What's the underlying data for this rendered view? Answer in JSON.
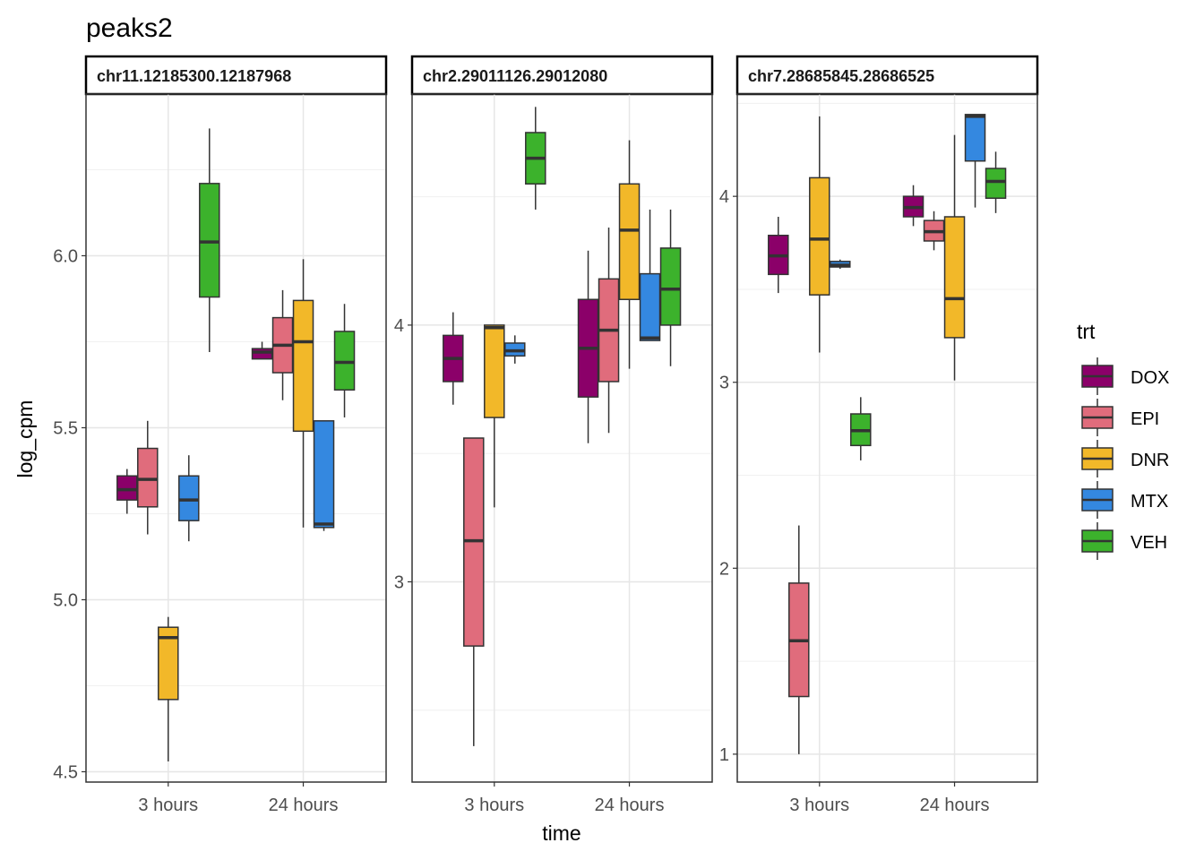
{
  "title": "peaks2",
  "chart_data": {
    "type": "boxplot",
    "xlabel": "time",
    "ylabel": "log_cpm",
    "categories": [
      "3 hours",
      "24 hours"
    ],
    "groups": [
      "DOX",
      "EPI",
      "DNR",
      "MTX",
      "VEH"
    ],
    "legend": {
      "title": "trt",
      "position": "right",
      "entries": [
        {
          "name": "DOX",
          "color": "#8B0069"
        },
        {
          "name": "EPI",
          "color": "#E06C7C"
        },
        {
          "name": "DNR",
          "color": "#F2B829"
        },
        {
          "name": "MTX",
          "color": "#3488E0"
        },
        {
          "name": "VEH",
          "color": "#3CB22C"
        }
      ]
    },
    "grid": true,
    "facets": [
      {
        "strip": "chr11.12185300.12187968",
        "ylim": [
          4.47,
          6.47
        ],
        "major_ticks": [
          4.5,
          5.0,
          5.5,
          6.0
        ],
        "tick_labels": [
          "4.5",
          "5.0",
          "5.5",
          "6.0"
        ],
        "boxes": {
          "3 hours": [
            {
              "trt": "DOX",
              "min": 5.25,
              "q1": 5.29,
              "median": 5.32,
              "q3": 5.36,
              "max": 5.38
            },
            {
              "trt": "EPI",
              "min": 5.19,
              "q1": 5.27,
              "median": 5.35,
              "q3": 5.44,
              "max": 5.52
            },
            {
              "trt": "DNR",
              "min": 4.53,
              "q1": 4.71,
              "median": 4.89,
              "q3": 4.92,
              "max": 4.95
            },
            {
              "trt": "MTX",
              "min": 5.17,
              "q1": 5.23,
              "median": 5.29,
              "q3": 5.36,
              "max": 5.42
            },
            {
              "trt": "VEH",
              "min": 5.72,
              "q1": 5.88,
              "median": 6.04,
              "q3": 6.21,
              "max": 6.37
            }
          ],
          "24 hours": [
            {
              "trt": "DOX",
              "min": 5.7,
              "q1": 5.7,
              "median": 5.72,
              "q3": 5.73,
              "max": 5.75
            },
            {
              "trt": "EPI",
              "min": 5.58,
              "q1": 5.66,
              "median": 5.74,
              "q3": 5.82,
              "max": 5.9
            },
            {
              "trt": "DNR",
              "min": 5.21,
              "q1": 5.49,
              "median": 5.75,
              "q3": 5.87,
              "max": 5.99
            },
            {
              "trt": "MTX",
              "min": 5.2,
              "q1": 5.21,
              "median": 5.22,
              "q3": 5.52,
              "max": 5.52
            },
            {
              "trt": "VEH",
              "min": 5.53,
              "q1": 5.61,
              "median": 5.69,
              "q3": 5.78,
              "max": 5.86
            }
          ]
        }
      },
      {
        "strip": "chr2.29011126.29012080",
        "ylim": [
          2.22,
          4.9
        ],
        "major_ticks": [
          3,
          4
        ],
        "tick_labels": [
          "3",
          "4"
        ],
        "boxes": {
          "3 hours": [
            {
              "trt": "DOX",
              "min": 3.69,
              "q1": 3.78,
              "median": 3.87,
              "q3": 3.96,
              "max": 4.05
            },
            {
              "trt": "EPI",
              "min": 2.36,
              "q1": 2.75,
              "median": 3.16,
              "q3": 3.56,
              "max": 3.56
            },
            {
              "trt": "DNR",
              "min": 3.29,
              "q1": 3.64,
              "median": 3.99,
              "q3": 4.0,
              "max": 4.0
            },
            {
              "trt": "MTX",
              "min": 3.85,
              "q1": 3.88,
              "median": 3.9,
              "q3": 3.93,
              "max": 3.96
            },
            {
              "trt": "VEH",
              "min": 4.45,
              "q1": 4.55,
              "median": 4.65,
              "q3": 4.75,
              "max": 4.85
            }
          ],
          "24 hours": [
            {
              "trt": "DOX",
              "min": 3.54,
              "q1": 3.72,
              "median": 3.91,
              "q3": 4.1,
              "max": 4.29
            },
            {
              "trt": "EPI",
              "min": 3.58,
              "q1": 3.78,
              "median": 3.98,
              "q3": 4.18,
              "max": 4.38
            },
            {
              "trt": "DNR",
              "min": 3.83,
              "q1": 4.1,
              "median": 4.37,
              "q3": 4.55,
              "max": 4.72
            },
            {
              "trt": "MTX",
              "min": 3.94,
              "q1": 3.94,
              "median": 3.95,
              "q3": 4.2,
              "max": 4.45
            },
            {
              "trt": "VEH",
              "min": 3.84,
              "q1": 4.0,
              "median": 4.14,
              "q3": 4.3,
              "max": 4.45
            }
          ]
        }
      },
      {
        "strip": "chr7.28685845.28686525",
        "ylim": [
          0.85,
          4.55
        ],
        "major_ticks": [
          1,
          2,
          3,
          4
        ],
        "tick_labels": [
          "1",
          "2",
          "3",
          "4"
        ],
        "boxes": {
          "3 hours": [
            {
              "trt": "DOX",
              "min": 3.48,
              "q1": 3.58,
              "median": 3.68,
              "q3": 3.79,
              "max": 3.89
            },
            {
              "trt": "EPI",
              "min": 1.0,
              "q1": 1.31,
              "median": 1.61,
              "q3": 1.92,
              "max": 2.23
            },
            {
              "trt": "DNR",
              "min": 3.16,
              "q1": 3.47,
              "median": 3.77,
              "q3": 4.1,
              "max": 4.43
            },
            {
              "trt": "MTX",
              "min": 3.61,
              "q1": 3.62,
              "median": 3.63,
              "q3": 3.65,
              "max": 3.66
            },
            {
              "trt": "VEH",
              "min": 2.58,
              "q1": 2.66,
              "median": 2.74,
              "q3": 2.83,
              "max": 2.92
            }
          ],
          "24 hours": [
            {
              "trt": "DOX",
              "min": 3.84,
              "q1": 3.89,
              "median": 3.94,
              "q3": 4.0,
              "max": 4.06
            },
            {
              "trt": "EPI",
              "min": 3.71,
              "q1": 3.76,
              "median": 3.81,
              "q3": 3.87,
              "max": 3.92
            },
            {
              "trt": "DNR",
              "min": 3.01,
              "q1": 3.24,
              "median": 3.45,
              "q3": 3.89,
              "max": 4.33
            },
            {
              "trt": "MTX",
              "min": 3.94,
              "q1": 4.19,
              "median": 4.43,
              "q3": 4.44,
              "max": 4.44
            },
            {
              "trt": "VEH",
              "min": 3.91,
              "q1": 3.99,
              "median": 4.08,
              "q3": 4.15,
              "max": 4.24
            }
          ]
        }
      }
    ]
  }
}
